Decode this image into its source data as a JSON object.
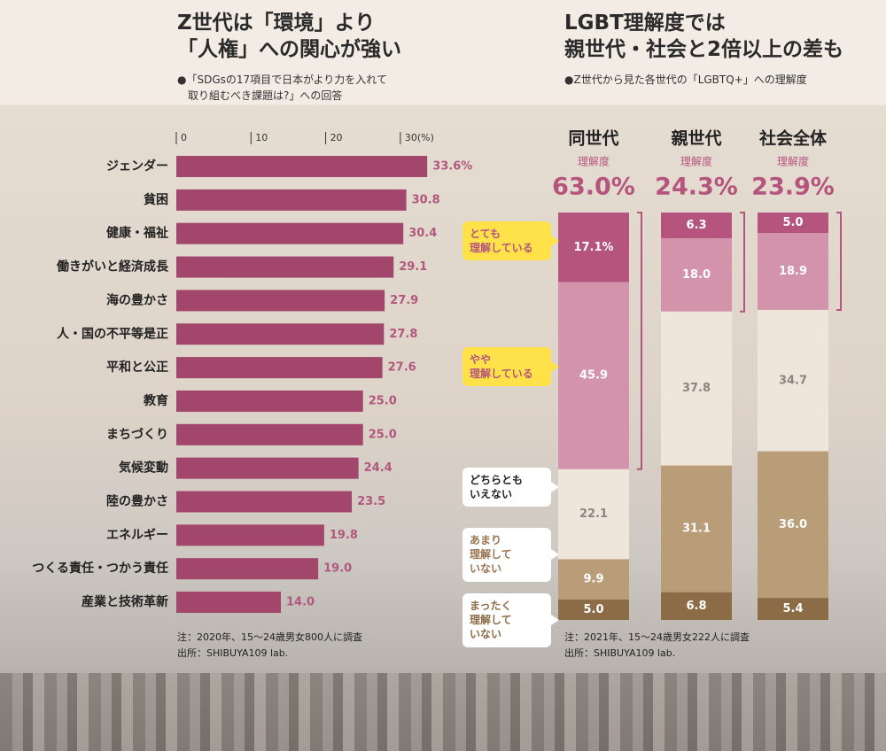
{
  "chart_data": [
    {
      "type": "bar",
      "orientation": "horizontal",
      "title": "Z世代は「環境」より\n「人権」への関心が強い",
      "subtitle": "●「SDGsの17項目で日本がより力を入れて\n　取り組むべき課題は?」への回答",
      "categories": [
        "ジェンダー",
        "貧困",
        "健康・福祉",
        "働きがいと経済成長",
        "海の豊かさ",
        "人・国の不平等是正",
        "平和と公正",
        "教育",
        "まちづくり",
        "気候変動",
        "陸の豊かさ",
        "エネルギー",
        "つくる責任・つかう責任",
        "産業と技術革新"
      ],
      "values": [
        33.6,
        30.8,
        30.4,
        29.1,
        27.9,
        27.8,
        27.6,
        25.0,
        25.0,
        24.4,
        23.5,
        19.8,
        19.0,
        14.0
      ],
      "value_labels": [
        "33.6%",
        "30.8",
        "30.4",
        "29.1",
        "27.9",
        "27.8",
        "27.6",
        "25.0",
        "25.0",
        "24.4",
        "23.5",
        "19.8",
        "19.0",
        "14.0"
      ],
      "color": "#a3466c",
      "xlim": [
        0,
        35
      ],
      "xticks": [
        0,
        10,
        20,
        {
          "value": 30,
          "label": "30(%)"
        }
      ],
      "notes": [
        "注：2020年、15～24歳男女800人に調査",
        "出所：SHIBUYA109 lab."
      ]
    },
    {
      "type": "stacked_bar",
      "title": "LGBT理解度では\n親世代・社会と2倍以上の差も",
      "subtitle": "●Z世代から見た各世代の「LGBTQ+」への理解度",
      "categories": [
        "同世代",
        "親世代",
        "社会全体"
      ],
      "understanding": {
        "label": "理解度",
        "values": [
          63.0,
          24.3,
          23.9
        ],
        "value_labels": [
          "63.0%",
          "24.3%",
          "23.9%"
        ]
      },
      "ylim": [
        0,
        100
      ],
      "series": [
        {
          "name": "とても\n理解している",
          "color": "#b5557d",
          "values": [
            17.1,
            6.3,
            5.0
          ],
          "value_labels": [
            "17.1%",
            "6.3",
            "5.0"
          ]
        },
        {
          "name": "やや\n理解している",
          "color": "#d393ab",
          "values": [
            45.9,
            18.0,
            18.9
          ],
          "value_labels": [
            "45.9",
            "18.0",
            "18.9"
          ]
        },
        {
          "name": "どちらとも\nいえない",
          "color": "#efe6db",
          "values": [
            22.1,
            37.8,
            34.7
          ],
          "value_labels": [
            "22.1",
            "37.8",
            "34.7"
          ]
        },
        {
          "name": "あまり\n理解して\nいない",
          "color": "#b99d78",
          "values": [
            9.9,
            31.1,
            36.0
          ],
          "value_labels": [
            "9.9",
            "31.1",
            "36.0"
          ]
        },
        {
          "name": "まったく\n理解して\nいない",
          "color": "#8c6c47",
          "values": [
            5.0,
            6.8,
            5.4
          ],
          "value_labels": [
            "5.0",
            "6.8",
            "5.4"
          ]
        }
      ],
      "notes": [
        "注：2021年、15～24歳男女222人に調査",
        "出所：SHIBUYA109 lab."
      ]
    }
  ]
}
